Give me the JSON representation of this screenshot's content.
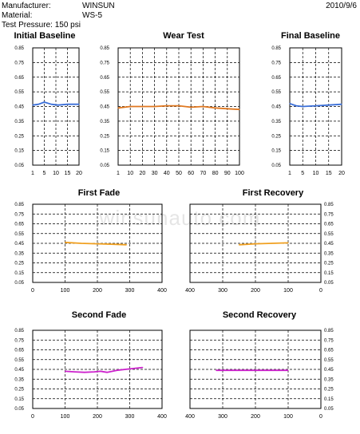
{
  "header": {
    "manufacturer_label": "Manufacturer:",
    "manufacturer_value": "WINSUN",
    "material_label": "Material:",
    "material_value": "WS-5",
    "pressure": "Test Pressure:  150 psi",
    "date": "2010/9/6"
  },
  "watermark": "winsunauto.com",
  "chart_data": [
    {
      "type": "line",
      "title": "Initial Baseline",
      "xlabel": "",
      "ylabel": "",
      "x_ticks": [
        "1",
        "5",
        "10",
        "15",
        "20"
      ],
      "x_reversed": false,
      "y_ticks": [
        "0.85",
        "0.75",
        "0.65",
        "0.55",
        "0.45",
        "0.35",
        "0.25",
        "0.15",
        "0.05"
      ],
      "ylim": [
        0.05,
        0.85
      ],
      "grid": true,
      "color": "#3b6fd8",
      "x": [
        1,
        3,
        5,
        8,
        11,
        15,
        20
      ],
      "y": [
        0.46,
        0.465,
        0.48,
        0.465,
        0.46,
        0.465,
        0.465
      ]
    },
    {
      "type": "line",
      "title": "Wear Test",
      "xlabel": "",
      "ylabel": "",
      "x_ticks": [
        "1",
        "10",
        "20",
        "30",
        "40",
        "50",
        "60",
        "70",
        "80",
        "90",
        "100"
      ],
      "x_reversed": false,
      "y_ticks": [
        "0.85",
        "0.75",
        "0.65",
        "0.55",
        "0.45",
        "0.35",
        "0.25",
        "0.15",
        "0.05"
      ],
      "ylim": [
        0.05,
        0.85
      ],
      "grid": true,
      "color": "#e07820",
      "x": [
        1,
        10,
        20,
        30,
        40,
        50,
        60,
        70,
        80,
        90,
        100
      ],
      "y": [
        0.44,
        0.45,
        0.45,
        0.45,
        0.455,
        0.455,
        0.445,
        0.45,
        0.44,
        0.435,
        0.43
      ]
    },
    {
      "type": "line",
      "title": "Final Baseline",
      "xlabel": "",
      "ylabel": "",
      "x_ticks": [
        "1",
        "5",
        "10",
        "15",
        "20"
      ],
      "x_reversed": false,
      "y_ticks": [
        "0.85",
        "0.75",
        "0.65",
        "0.55",
        "0.45",
        "0.35",
        "0.25",
        "0.15",
        "0.05"
      ],
      "ylim": [
        0.05,
        0.85
      ],
      "grid": true,
      "color": "#3b6fd8",
      "x": [
        1,
        3,
        5,
        10,
        15,
        20
      ],
      "y": [
        0.47,
        0.455,
        0.45,
        0.455,
        0.46,
        0.465
      ]
    },
    {
      "type": "line",
      "title": "First Fade",
      "xlabel": "",
      "ylabel": "",
      "x_ticks": [
        "0",
        "100",
        "200",
        "300",
        "400"
      ],
      "x_reversed": false,
      "y_ticks": [
        "0.85",
        "0.75",
        "0.65",
        "0.55",
        "0.45",
        "0.35",
        "0.25",
        "0.15",
        "0.05"
      ],
      "ylim": [
        0.05,
        0.85
      ],
      "grid": true,
      "color": "#f0a020",
      "x": [
        100,
        150,
        200,
        250,
        290
      ],
      "y": [
        0.46,
        0.45,
        0.445,
        0.44,
        0.435
      ]
    },
    {
      "type": "line",
      "title": "First Recovery",
      "xlabel": "",
      "ylabel": "",
      "x_ticks": [
        "400",
        "300",
        "200",
        "100",
        "0"
      ],
      "x_reversed": true,
      "y_ticks": [
        "0.85",
        "0.75",
        "0.65",
        "0.55",
        "0.45",
        "0.35",
        "0.25",
        "0.15",
        "0.05"
      ],
      "ylim": [
        0.05,
        0.85
      ],
      "grid": true,
      "color": "#f0a020",
      "x": [
        250,
        200,
        150,
        100
      ],
      "y": [
        0.435,
        0.445,
        0.45,
        0.455
      ]
    },
    {
      "type": "line",
      "title": "Second Fade",
      "xlabel": "",
      "ylabel": "",
      "x_ticks": [
        "0",
        "100",
        "200",
        "300",
        "400"
      ],
      "x_reversed": false,
      "y_ticks": [
        "0.85",
        "0.75",
        "0.65",
        "0.55",
        "0.45",
        "0.35",
        "0.25",
        "0.15",
        "0.05"
      ],
      "ylim": [
        0.05,
        0.85
      ],
      "grid": true,
      "color": "#cc22cc",
      "x": [
        100,
        130,
        160,
        190,
        210,
        230,
        260,
        300,
        340
      ],
      "y": [
        0.43,
        0.425,
        0.42,
        0.425,
        0.43,
        0.42,
        0.44,
        0.455,
        0.47
      ]
    },
    {
      "type": "line",
      "title": "Second Recovery",
      "xlabel": "",
      "ylabel": "",
      "x_ticks": [
        "400",
        "300",
        "200",
        "100",
        "0"
      ],
      "x_reversed": true,
      "y_ticks": [
        "0.85",
        "0.75",
        "0.65",
        "0.55",
        "0.45",
        "0.35",
        "0.25",
        "0.15",
        "0.05"
      ],
      "ylim": [
        0.05,
        0.85
      ],
      "grid": true,
      "color": "#cc22cc",
      "x": [
        320,
        260,
        200,
        150,
        100
      ],
      "y": [
        0.44,
        0.44,
        0.44,
        0.44,
        0.44
      ]
    }
  ]
}
